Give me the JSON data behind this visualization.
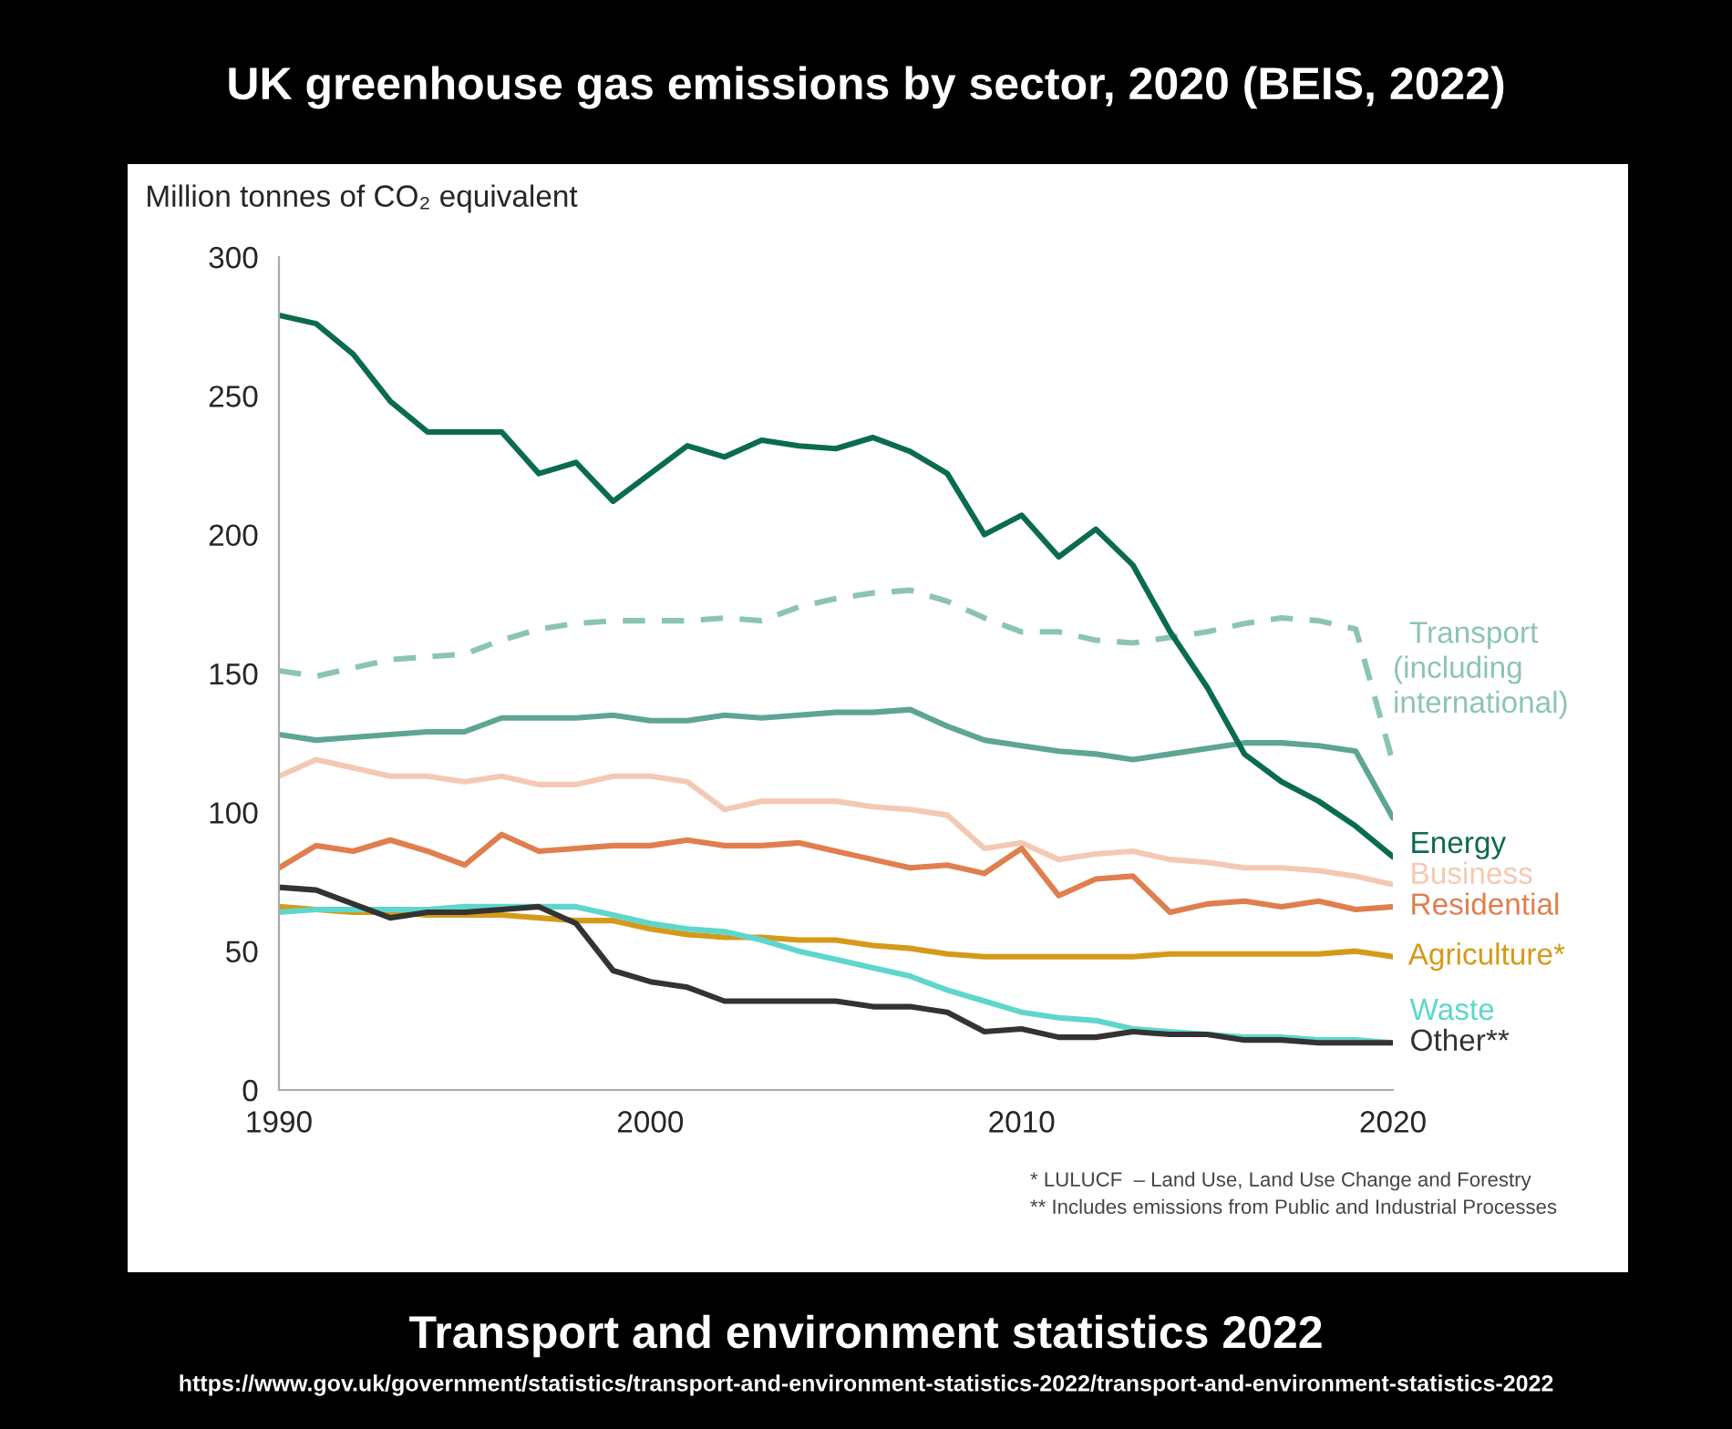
{
  "chart_data": {
    "type": "line",
    "title": "UK greenhouse gas emissions by sector, 2020 (BEIS, 2022)",
    "ylabel": "Million tonnes of CO₂ equivalent",
    "x": [
      1990,
      1991,
      1992,
      1993,
      1994,
      1995,
      1996,
      1997,
      1998,
      1999,
      2000,
      2001,
      2002,
      2003,
      2004,
      2005,
      2006,
      2007,
      2008,
      2009,
      2010,
      2011,
      2012,
      2013,
      2014,
      2015,
      2016,
      2017,
      2018,
      2019,
      2020
    ],
    "xlim": [
      1990,
      2020
    ],
    "xticks": [
      1990,
      2000,
      2010,
      2020
    ],
    "ylim": [
      0,
      300
    ],
    "yticks": [
      0,
      50,
      100,
      150,
      200,
      250,
      300
    ],
    "grid": false,
    "legend": false,
    "series": [
      {
        "name": "Transport (including international)",
        "color": "#8cc4b4",
        "line_style": "dashed",
        "values": [
          151,
          149,
          152,
          155,
          156,
          157,
          162,
          166,
          168,
          169,
          169,
          169,
          170,
          169,
          174,
          177,
          179,
          180,
          176,
          170,
          165,
          165,
          162,
          161,
          163,
          165,
          168,
          170,
          169,
          166,
          118
        ]
      },
      {
        "color": "#5ea593",
        "values": [
          128,
          126,
          127,
          128,
          129,
          129,
          134,
          134,
          134,
          135,
          133,
          133,
          135,
          134,
          135,
          136,
          136,
          137,
          131,
          126,
          124,
          122,
          121,
          119,
          121,
          123,
          125,
          125,
          124,
          122,
          98
        ]
      },
      {
        "name": "Energy",
        "color": "#0b6b50",
        "values": [
          279,
          276,
          265,
          248,
          237,
          237,
          237,
          222,
          226,
          212,
          222,
          232,
          228,
          234,
          232,
          231,
          235,
          230,
          222,
          200,
          207,
          192,
          202,
          189,
          165,
          145,
          121,
          111,
          104,
          95,
          84
        ]
      },
      {
        "name": "Business",
        "color": "#f4c9b4",
        "values": [
          113,
          119,
          116,
          113,
          113,
          111,
          113,
          110,
          110,
          113,
          113,
          111,
          101,
          104,
          104,
          104,
          102,
          101,
          99,
          87,
          89,
          83,
          85,
          86,
          83,
          82,
          80,
          80,
          79,
          77,
          74
        ]
      },
      {
        "name": "Residential",
        "color": "#e07e4e",
        "values": [
          80,
          88,
          86,
          90,
          86,
          81,
          92,
          86,
          87,
          88,
          88,
          90,
          88,
          88,
          89,
          86,
          83,
          80,
          81,
          78,
          87,
          70,
          76,
          77,
          64,
          67,
          68,
          66,
          68,
          65,
          66
        ]
      },
      {
        "name": "Agriculture*",
        "color": "#d49a1a",
        "values": [
          66,
          65,
          64,
          64,
          63,
          63,
          63,
          62,
          61,
          61,
          58,
          56,
          55,
          55,
          54,
          54,
          52,
          51,
          49,
          48,
          48,
          48,
          48,
          48,
          49,
          49,
          49,
          49,
          49,
          50,
          48
        ]
      },
      {
        "name": "Waste",
        "color": "#5fd6cc",
        "values": [
          64,
          65,
          65,
          65,
          65,
          66,
          66,
          66,
          66,
          63,
          60,
          58,
          57,
          54,
          50,
          47,
          44,
          41,
          36,
          32,
          28,
          26,
          25,
          22,
          21,
          20,
          19,
          19,
          18,
          18,
          17
        ]
      },
      {
        "name": "Other**",
        "color": "#333333",
        "values": [
          73,
          72,
          67,
          62,
          64,
          64,
          65,
          66,
          60,
          43,
          39,
          37,
          32,
          32,
          32,
          32,
          30,
          30,
          28,
          21,
          22,
          19,
          19,
          21,
          20,
          20,
          18,
          18,
          17,
          17,
          17
        ]
      }
    ],
    "annotations": [
      "* LULUCF  – Land Use, Land Use Change and Forestry",
      "** Includes emissions from Public and Industrial Processes",
      "Transport and environment statistics 2022",
      "https://www.gov.uk/government/statistics/transport-and-environment-statistics-2022/transport-and-environment-statistics-2022"
    ]
  }
}
